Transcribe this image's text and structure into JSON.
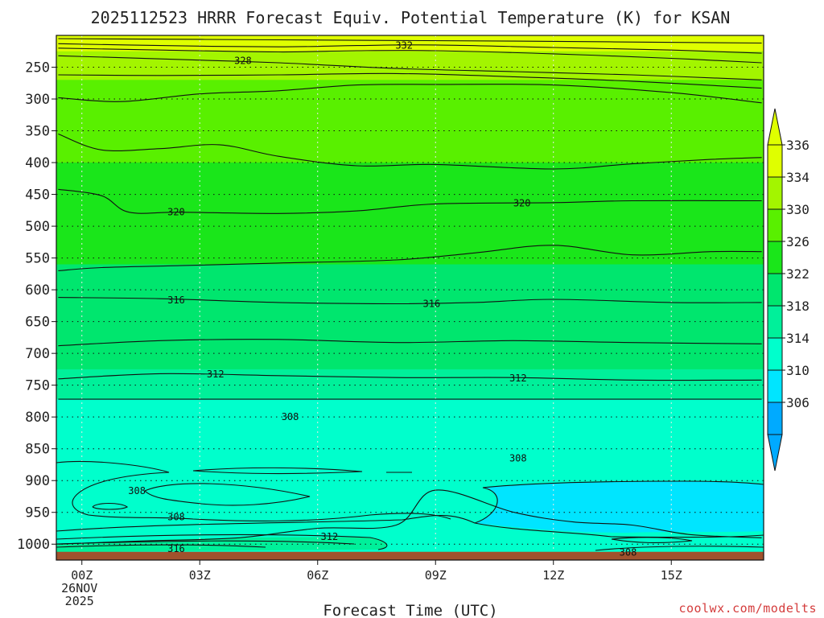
{
  "chart_data": {
    "type": "contour",
    "title": "2025112523 HRRR Forecast Equiv. Potential Temperature (K) for KSAN",
    "xlabel": "Forecast Time (UTC)",
    "ylabel": "",
    "credit": "coolwx.com/modelts",
    "x_ticks": [
      {
        "label": "00Z",
        "hour": 1,
        "sub1": "26NOV",
        "sub2": "2025"
      },
      {
        "label": "03Z",
        "hour": 4
      },
      {
        "label": "06Z",
        "hour": 7
      },
      {
        "label": "09Z",
        "hour": 10
      },
      {
        "label": "12Z",
        "hour": 13
      },
      {
        "label": "15Z",
        "hour": 16
      }
    ],
    "xlim_hours": [
      0.35,
      18.35
    ],
    "y_ticks": [
      250,
      300,
      350,
      400,
      450,
      500,
      550,
      600,
      650,
      700,
      750,
      800,
      850,
      900,
      950,
      1000
    ],
    "ylim_hpa": [
      200,
      1025
    ],
    "colorbar": {
      "levels": [
        306,
        310,
        314,
        318,
        322,
        326,
        330,
        334,
        336
      ],
      "tick_labels": [
        "336",
        "334",
        "330",
        "326",
        "322",
        "318",
        "314",
        "310",
        "306"
      ],
      "colors": [
        "#00aaff",
        "#00e5ff",
        "#00ffcc",
        "#00f09a",
        "#00e66e",
        "#1ae61a",
        "#59f000",
        "#a3f500",
        "#dfff00"
      ],
      "ground_color": "#a0522d"
    },
    "fill_bands": [
      {
        "range": "328-334",
        "color": "#a3f500",
        "p_bottom": 225
      },
      {
        "range": "322-328",
        "color": "#59f000",
        "p_bottom": 270
      },
      {
        "range": "322-326",
        "color": "#1ae61a",
        "p_bottom": 400
      },
      {
        "range": "318-322",
        "color": "#00e66e",
        "p_bottom": 560
      },
      {
        "range": "314-318",
        "color": "#00f09a",
        "p_bottom": 725
      },
      {
        "range": "310-314",
        "color": "#00ffcc",
        "p_bottom": 772
      },
      {
        "range": "306-310",
        "color": "#00e5ff",
        "p_bottom": 1010
      }
    ],
    "contours": [
      {
        "value": 334,
        "points": [
          [
            0.4,
            205
          ],
          [
            6,
            207
          ],
          [
            12,
            209
          ],
          [
            18.3,
            212
          ]
        ]
      },
      {
        "value": 332,
        "points": [
          [
            0.4,
            213
          ],
          [
            3,
            216
          ],
          [
            6,
            218
          ],
          [
            8,
            216
          ],
          [
            10,
            215
          ],
          [
            13,
            219
          ],
          [
            16,
            223
          ],
          [
            18.3,
            228
          ]
        ]
      },
      {
        "value": 330,
        "points": [
          [
            0.4,
            220
          ],
          [
            3,
            223
          ],
          [
            6,
            226
          ],
          [
            8,
            224
          ],
          [
            10,
            224
          ],
          [
            13,
            229
          ],
          [
            16,
            236
          ],
          [
            18.3,
            243
          ]
        ]
      },
      {
        "value": 328,
        "points": [
          [
            0.4,
            232
          ],
          [
            3,
            237
          ],
          [
            6,
            243
          ],
          [
            9,
            252
          ],
          [
            12,
            257
          ],
          [
            15,
            262
          ],
          [
            18.3,
            270
          ]
        ]
      },
      {
        "value": 326,
        "points": [
          [
            0.4,
            262
          ],
          [
            3,
            263
          ],
          [
            6,
            262
          ],
          [
            9,
            260
          ],
          [
            12,
            265
          ],
          [
            15,
            272
          ],
          [
            18.3,
            283
          ]
        ]
      },
      {
        "value": 324,
        "points": [
          [
            0.4,
            298
          ],
          [
            2,
            304
          ],
          [
            4,
            292
          ],
          [
            6,
            287
          ],
          [
            8,
            278
          ],
          [
            10,
            277
          ],
          [
            13,
            278
          ],
          [
            16,
            290
          ],
          [
            18.3,
            306
          ]
        ]
      },
      {
        "value": 322,
        "points": [
          [
            0.4,
            355
          ],
          [
            1.5,
            380
          ],
          [
            3,
            378
          ],
          [
            4.5,
            372
          ],
          [
            6,
            390
          ],
          [
            8,
            405
          ],
          [
            10,
            403
          ],
          [
            13,
            410
          ],
          [
            15,
            402
          ],
          [
            17,
            395
          ],
          [
            18.3,
            392
          ]
        ]
      },
      {
        "value": 320,
        "points": [
          [
            0.4,
            442
          ],
          [
            1.5,
            452
          ],
          [
            2.2,
            478
          ],
          [
            3.5,
            478
          ],
          [
            6,
            480
          ],
          [
            8,
            476
          ],
          [
            10,
            465
          ],
          [
            13,
            463
          ],
          [
            15,
            460
          ],
          [
            18.3,
            460
          ]
        ]
      },
      {
        "value": 318,
        "points": [
          [
            0.4,
            570
          ],
          [
            1.5,
            565
          ],
          [
            3.5,
            562
          ],
          [
            6,
            558
          ],
          [
            9,
            553
          ],
          [
            11,
            542
          ],
          [
            13,
            530
          ],
          [
            15,
            545
          ],
          [
            17,
            540
          ],
          [
            18.3,
            540
          ]
        ]
      },
      {
        "value": 316,
        "points": [
          [
            0.4,
            612
          ],
          [
            3,
            614
          ],
          [
            6,
            620
          ],
          [
            9,
            622
          ],
          [
            11,
            620
          ],
          [
            13,
            615
          ],
          [
            16,
            620
          ],
          [
            18.3,
            620
          ]
        ]
      },
      {
        "value": 314,
        "points": [
          [
            0.4,
            688
          ],
          [
            3,
            680
          ],
          [
            6,
            678
          ],
          [
            9,
            683
          ],
          [
            12,
            680
          ],
          [
            15,
            683
          ],
          [
            18.3,
            685
          ]
        ]
      },
      {
        "value": 312,
        "points": [
          [
            0.4,
            740
          ],
          [
            3,
            732
          ],
          [
            6,
            735
          ],
          [
            9,
            738
          ],
          [
            12,
            738
          ],
          [
            15,
            742
          ],
          [
            18.3,
            742
          ]
        ]
      },
      {
        "value": 310,
        "points": [
          [
            0.4,
            772
          ],
          [
            6,
            772
          ],
          [
            12,
            772
          ],
          [
            18.3,
            772
          ]
        ]
      },
      {
        "value": 308,
        "points": [
          [
            0.4,
            1000
          ],
          [
            2.5,
            995
          ],
          [
            5,
            990
          ],
          [
            7,
            975
          ],
          [
            9,
            970
          ],
          [
            10,
            915
          ],
          [
            12,
            950
          ],
          [
            13.5,
            965
          ],
          [
            15,
            970
          ],
          [
            16.5,
            985
          ],
          [
            18.3,
            990
          ]
        ]
      }
    ],
    "contour_labels": [
      {
        "text": "332",
        "hour": 9.2,
        "p": 216
      },
      {
        "text": "328",
        "hour": 5.1,
        "p": 240
      },
      {
        "text": "320",
        "hour": 3.4,
        "p": 478
      },
      {
        "text": "320",
        "hour": 12.2,
        "p": 464
      },
      {
        "text": "316",
        "hour": 3.4,
        "p": 616
      },
      {
        "text": "316",
        "hour": 9.9,
        "p": 622
      },
      {
        "text": "312",
        "hour": 4.4,
        "p": 733
      },
      {
        "text": "312",
        "hour": 12.1,
        "p": 739
      },
      {
        "text": "308",
        "hour": 6.3,
        "p": 800
      },
      {
        "text": "308",
        "hour": 12.1,
        "p": 865
      },
      {
        "text": "308",
        "hour": 2.4,
        "p": 916
      },
      {
        "text": "308",
        "hour": 3.4,
        "p": 957
      },
      {
        "text": "312",
        "hour": 7.3,
        "p": 988
      },
      {
        "text": "316",
        "hour": 3.4,
        "p": 1007
      },
      {
        "text": "308",
        "hour": 14.9,
        "p": 1013
      }
    ]
  }
}
